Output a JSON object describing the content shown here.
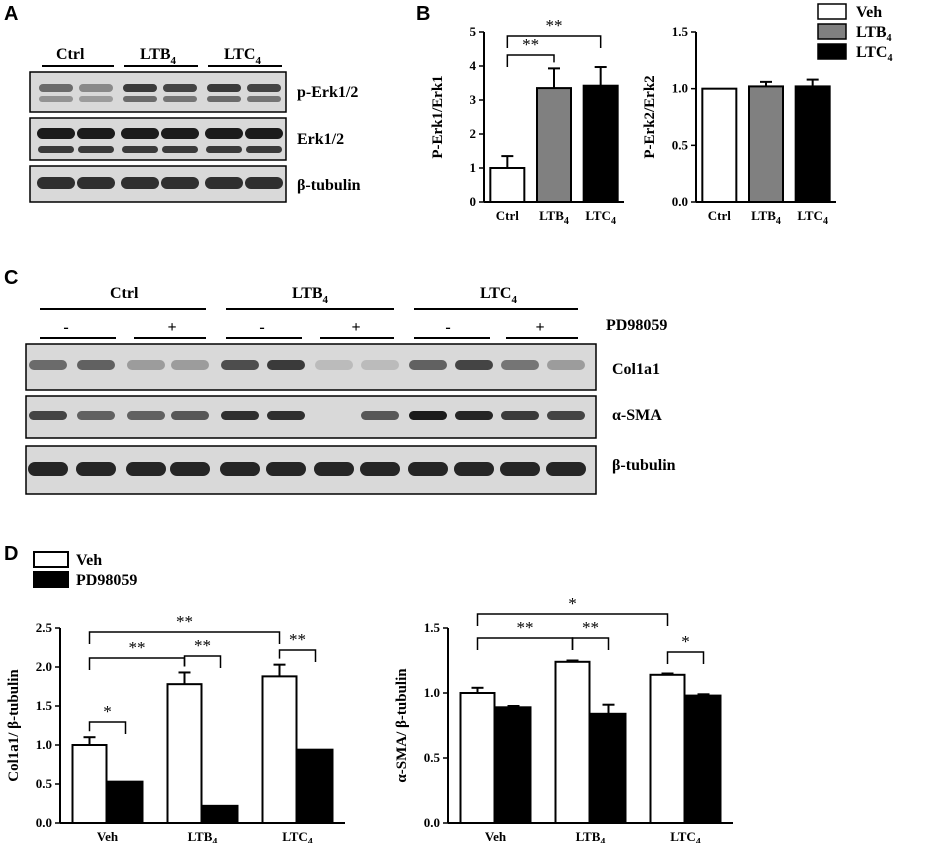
{
  "panels": {
    "A": {
      "letter": "A",
      "groups": [
        "Ctrl",
        "LTB",
        "LTC"
      ],
      "group_subscripts": [
        "",
        "4",
        "4"
      ],
      "blots": [
        "p-Erk1/2",
        "Erk1/2",
        "β-tubulin"
      ]
    },
    "B": {
      "letter": "B",
      "legend": [
        {
          "label": "Veh",
          "sub": "",
          "color": "#ffffff"
        },
        {
          "label": "LTB",
          "sub": "4",
          "color": "#808080"
        },
        {
          "label": "LTC",
          "sub": "4",
          "color": "#000000"
        }
      ]
    },
    "C": {
      "letter": "C",
      "groups": [
        "Ctrl",
        "LTB",
        "LTC"
      ],
      "group_subscripts": [
        "",
        "4",
        "4"
      ],
      "treatment_label": "PD98059",
      "treatment_signs": [
        "-",
        "+",
        "-",
        "+",
        "-",
        "+"
      ],
      "blots": [
        "Col1a1",
        "α-SMA",
        "β-tubulin"
      ]
    },
    "D": {
      "letter": "D",
      "legend": [
        {
          "label": "Veh",
          "color": "#ffffff"
        },
        {
          "label": "PD98059",
          "color": "#000000"
        }
      ]
    }
  },
  "chart_data": [
    {
      "type": "bar",
      "panel": "B-left",
      "categories": [
        "Ctrl",
        "LTB",
        "LTC"
      ],
      "category_subscripts": [
        "",
        "4",
        "4"
      ],
      "values": [
        1.0,
        3.35,
        3.42
      ],
      "errors": [
        0.35,
        0.58,
        0.55
      ],
      "colors": [
        "#ffffff",
        "#808080",
        "#000000"
      ],
      "ylabel": "P-Erk1/Erk1",
      "ylim": [
        0,
        5
      ],
      "yticks": [
        0,
        1,
        2,
        3,
        4,
        5
      ],
      "significance": [
        {
          "from": 0,
          "to": 1,
          "label": "**"
        },
        {
          "from": 0,
          "to": 2,
          "label": "**"
        }
      ]
    },
    {
      "type": "bar",
      "panel": "B-right",
      "categories": [
        "Ctrl",
        "LTB",
        "LTC"
      ],
      "category_subscripts": [
        "",
        "4",
        "4"
      ],
      "values": [
        1.0,
        1.02,
        1.02
      ],
      "errors": [
        0.0,
        0.04,
        0.06
      ],
      "colors": [
        "#ffffff",
        "#808080",
        "#000000"
      ],
      "ylabel": "P-Erk2/Erk2",
      "ylim": [
        0,
        1.5
      ],
      "yticks": [
        0.0,
        0.5,
        1.0,
        1.5
      ],
      "significance": []
    },
    {
      "type": "bar",
      "panel": "D-left",
      "categories": [
        "Veh",
        "LTB",
        "LTC"
      ],
      "category_subscripts": [
        "",
        "4",
        "4"
      ],
      "series": [
        {
          "values": [
            1.0,
            1.78,
            1.88
          ],
          "errors": [
            0.1,
            0.15,
            0.15
          ],
          "color": "#ffffff"
        },
        {
          "values": [
            0.53,
            0.22,
            0.94
          ],
          "errors": [
            0,
            0,
            0
          ],
          "color": "#000000"
        }
      ],
      "ylabel": "Col1a1/ β-tubulin",
      "ylim": [
        0,
        2.5
      ],
      "yticks": [
        0.0,
        0.5,
        1.0,
        1.5,
        2.0,
        2.5
      ],
      "significance": [
        {
          "a": [
            0,
            0
          ],
          "b": [
            0,
            1
          ],
          "label": "*"
        },
        {
          "a": [
            0,
            0
          ],
          "b": [
            1,
            0
          ],
          "label": "**"
        },
        {
          "a": [
            0,
            0
          ],
          "b": [
            2,
            0
          ],
          "label": "**"
        },
        {
          "a": [
            1,
            0
          ],
          "b": [
            1,
            1
          ],
          "label": "**"
        },
        {
          "a": [
            2,
            0
          ],
          "b": [
            2,
            1
          ],
          "label": "**"
        }
      ]
    },
    {
      "type": "bar",
      "panel": "D-right",
      "categories": [
        "Veh",
        "LTB",
        "LTC"
      ],
      "category_subscripts": [
        "",
        "4",
        "4"
      ],
      "series": [
        {
          "values": [
            1.0,
            1.24,
            1.14
          ],
          "errors": [
            0.04,
            0.01,
            0.01
          ],
          "color": "#ffffff"
        },
        {
          "values": [
            0.89,
            0.84,
            0.98
          ],
          "errors": [
            0.01,
            0.07,
            0.01
          ],
          "color": "#000000"
        }
      ],
      "ylabel": "α-SMA/ β-tubulin",
      "ylim": [
        0,
        1.5
      ],
      "yticks": [
        0.0,
        0.5,
        1.0,
        1.5
      ],
      "significance": [
        {
          "a": [
            0,
            0
          ],
          "b": [
            1,
            0
          ],
          "label": "**"
        },
        {
          "a": [
            0,
            0
          ],
          "b": [
            2,
            0
          ],
          "label": "*"
        },
        {
          "a": [
            1,
            0
          ],
          "b": [
            1,
            1
          ],
          "label": "**"
        },
        {
          "a": [
            2,
            0
          ],
          "b": [
            2,
            1
          ],
          "label": "*"
        }
      ]
    }
  ]
}
